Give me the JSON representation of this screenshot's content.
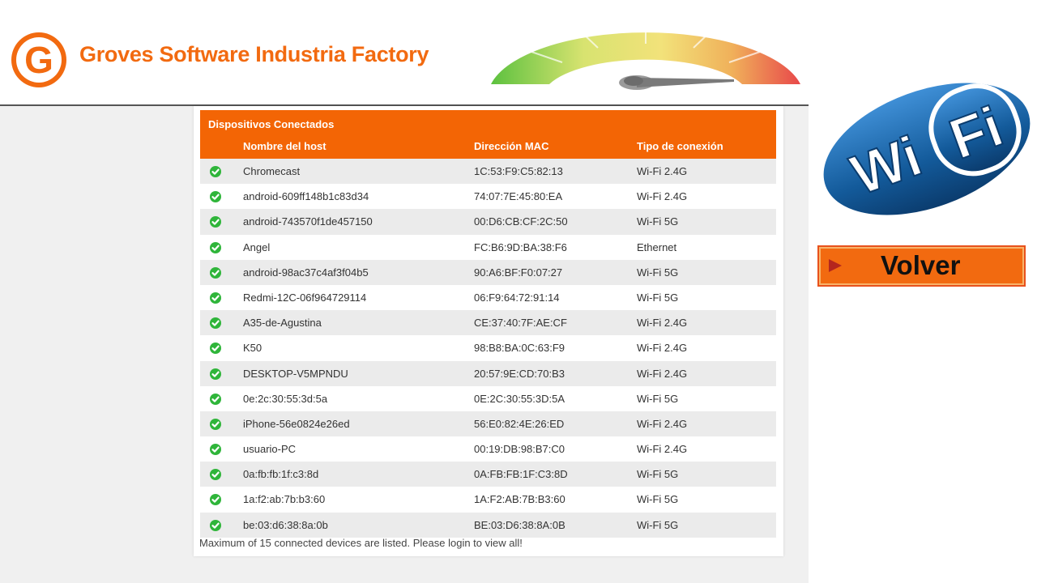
{
  "brand": {
    "name": "Groves Software Industria Factory",
    "logo_letter": "G"
  },
  "table": {
    "title": "Dispositivos Conectados",
    "columns": {
      "host": "Nombre del host",
      "mac": "Dirección MAC",
      "type": "Tipo de conexión"
    },
    "rows": [
      {
        "host": "Chromecast",
        "mac": "1C:53:F9:C5:82:13",
        "type": "Wi-Fi 2.4G"
      },
      {
        "host": "android-609ff148b1c83d34",
        "mac": "74:07:7E:45:80:EA",
        "type": "Wi-Fi 2.4G"
      },
      {
        "host": "android-743570f1de457150",
        "mac": "00:D6:CB:CF:2C:50",
        "type": "Wi-Fi 5G"
      },
      {
        "host": "Angel",
        "mac": "FC:B6:9D:BA:38:F6",
        "type": "Ethernet"
      },
      {
        "host": "android-98ac37c4af3f04b5",
        "mac": "90:A6:BF:F0:07:27",
        "type": "Wi-Fi 5G"
      },
      {
        "host": "Redmi-12C-06f964729114",
        "mac": "06:F9:64:72:91:14",
        "type": "Wi-Fi 5G"
      },
      {
        "host": "A35-de-Agustina",
        "mac": "CE:37:40:7F:AE:CF",
        "type": "Wi-Fi 2.4G"
      },
      {
        "host": "K50",
        "mac": "98:B8:BA:0C:63:F9",
        "type": "Wi-Fi 2.4G"
      },
      {
        "host": "DESKTOP-V5MPNDU",
        "mac": "20:57:9E:CD:70:B3",
        "type": "Wi-Fi 2.4G"
      },
      {
        "host": "0e:2c:30:55:3d:5a",
        "mac": "0E:2C:30:55:3D:5A",
        "type": "Wi-Fi 5G"
      },
      {
        "host": "iPhone-56e0824e26ed",
        "mac": "56:E0:82:4E:26:ED",
        "type": "Wi-Fi 2.4G"
      },
      {
        "host": "usuario-PC",
        "mac": "00:19:DB:98:B7:C0",
        "type": "Wi-Fi 2.4G"
      },
      {
        "host": "0a:fb:fb:1f:c3:8d",
        "mac": "0A:FB:FB:1F:C3:8D",
        "type": "Wi-Fi 5G"
      },
      {
        "host": "1a:f2:ab:7b:b3:60",
        "mac": "1A:F2:AB:7B:B3:60",
        "type": "Wi-Fi 5G"
      },
      {
        "host": "be:03:d6:38:8a:0b",
        "mac": "BE:03:D6:38:8A:0B",
        "type": "Wi-Fi 5G"
      }
    ],
    "footnote": "Maximum of 15 connected devices are listed. Please login to view all!"
  },
  "wifi_logo": {
    "left": "Wi",
    "right": "Fi"
  },
  "back_button": {
    "label": "Volver"
  },
  "colors": {
    "accent": "#f36505",
    "status_ok": "#2fb53a",
    "row_alt": "#ebebeb"
  },
  "icons": {
    "row_status": "check-circle-icon",
    "back_arrow": "triangle-right-icon",
    "gauge": "speedometer-icon"
  }
}
